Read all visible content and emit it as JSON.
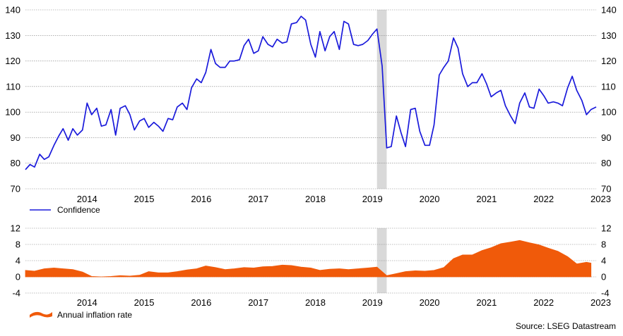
{
  "source": "Source: LSEG Datastream",
  "colors": {
    "confidence": "#1a1adb",
    "inflation": "#f05a0a",
    "highlight": "#d9d9d9",
    "grid": "#808080"
  },
  "chart_data": [
    {
      "type": "line",
      "legend": "Confidence",
      "legend_position": "bottom-left",
      "grid": true,
      "ylim": [
        70,
        140
      ],
      "yticks": [
        70,
        80,
        90,
        100,
        110,
        120,
        130,
        140
      ],
      "xticks": [
        "2014",
        "2015",
        "2016",
        "2017",
        "2018",
        "2019",
        "2020",
        "2021",
        "2022",
        "2023"
      ],
      "xlim": [
        2013.42,
        2023.42
      ],
      "highlight_band": [
        2019.58,
        2019.75
      ],
      "series": [
        {
          "name": "Confidence",
          "x": [
            2013.42,
            2013.5,
            2013.58,
            2013.67,
            2013.75,
            2013.83,
            2013.92,
            2014.0,
            2014.08,
            2014.17,
            2014.25,
            2014.33,
            2014.42,
            2014.5,
            2014.58,
            2014.67,
            2014.75,
            2014.83,
            2014.92,
            2015.0,
            2015.08,
            2015.17,
            2015.25,
            2015.33,
            2015.42,
            2015.5,
            2015.58,
            2015.67,
            2015.75,
            2015.83,
            2015.92,
            2016.0,
            2016.08,
            2016.17,
            2016.25,
            2016.33,
            2016.42,
            2016.5,
            2016.58,
            2016.67,
            2016.75,
            2016.83,
            2016.92,
            2017.0,
            2017.08,
            2017.17,
            2017.25,
            2017.33,
            2017.42,
            2017.5,
            2017.58,
            2017.67,
            2017.75,
            2017.83,
            2017.92,
            2018.0,
            2018.08,
            2018.17,
            2018.25,
            2018.33,
            2018.42,
            2018.5,
            2018.58,
            2018.67,
            2018.75,
            2018.83,
            2018.92,
            2019.0,
            2019.08,
            2019.17,
            2019.25,
            2019.33,
            2019.42,
            2019.5,
            2019.58,
            2019.67,
            2019.75,
            2019.83,
            2019.92,
            2020.0,
            2020.08,
            2020.17,
            2020.25,
            2020.33,
            2020.42,
            2020.5,
            2020.58,
            2020.67,
            2020.75,
            2020.83,
            2020.92,
            2021.0,
            2021.08,
            2021.17,
            2021.25,
            2021.33,
            2021.42,
            2021.5,
            2021.58,
            2021.67,
            2021.75,
            2021.83,
            2021.92,
            2022.0,
            2022.08,
            2022.17,
            2022.25,
            2022.33,
            2022.42,
            2022.5,
            2022.58,
            2022.67,
            2022.75,
            2022.83,
            2022.92,
            2023.0,
            2023.08,
            2023.17,
            2023.25,
            2023.33,
            2023.42
          ],
          "values": [
            77.5,
            79.5,
            78.5,
            83.5,
            81.5,
            82.5,
            87.0,
            90.5,
            93.5,
            89.0,
            93.5,
            91.0,
            93.0,
            103.5,
            99.0,
            101.5,
            94.5,
            95.0,
            101.0,
            91.0,
            101.5,
            102.5,
            99.0,
            93.0,
            96.5,
            97.5,
            94.0,
            96.0,
            94.5,
            92.5,
            97.5,
            97.0,
            102.0,
            103.5,
            101.0,
            109.5,
            113.0,
            111.5,
            115.5,
            124.5,
            119.0,
            117.5,
            117.5,
            120.0,
            120.0,
            120.5,
            126.0,
            128.5,
            123.0,
            124.0,
            129.5,
            126.5,
            125.5,
            128.5,
            127.0,
            127.5,
            134.5,
            135.0,
            137.5,
            136.0,
            126.5,
            121.5,
            131.5,
            124.0,
            129.5,
            131.5,
            124.5,
            135.5,
            134.5,
            126.5,
            126.0,
            126.5,
            128.0,
            130.5,
            132.5,
            118.0,
            86.0,
            86.5,
            98.5,
            92.0,
            86.5,
            101.0,
            101.5,
            92.5,
            87.0,
            87.0,
            95.0,
            114.5,
            117.5,
            120.0,
            129.0,
            125.0,
            115.0,
            110.0,
            111.5,
            111.5,
            115.0,
            111.0,
            106.0,
            107.5,
            108.5,
            102.5,
            98.5,
            95.5,
            103.5,
            107.5,
            102.0,
            101.5,
            109.0,
            106.5,
            103.5,
            104.0,
            103.5,
            102.5,
            109.5,
            114.0,
            108.5,
            104.5,
            99.0,
            101.0,
            102.0
          ]
        }
      ]
    },
    {
      "type": "area",
      "legend": "Annual inflation rate",
      "legend_position": "bottom-left",
      "grid": true,
      "ylim": [
        -4,
        12
      ],
      "yticks": [
        -4,
        0,
        4,
        8,
        12
      ],
      "xticks": [
        "2014",
        "2015",
        "2016",
        "2017",
        "2018",
        "2019",
        "2020",
        "2021",
        "2022",
        "2023"
      ],
      "xlim": [
        2013.42,
        2023.42
      ],
      "highlight_band": [
        2019.58,
        2019.75
      ],
      "series": [
        {
          "name": "Annual inflation rate",
          "x": [
            2013.42,
            2013.58,
            2013.75,
            2013.92,
            2014.08,
            2014.25,
            2014.42,
            2014.58,
            2014.75,
            2014.92,
            2015.08,
            2015.25,
            2015.42,
            2015.58,
            2015.75,
            2015.92,
            2016.08,
            2016.25,
            2016.42,
            2016.58,
            2016.75,
            2016.92,
            2017.08,
            2017.25,
            2017.42,
            2017.58,
            2017.75,
            2017.92,
            2018.08,
            2018.25,
            2018.42,
            2018.58,
            2018.75,
            2018.92,
            2019.08,
            2019.25,
            2019.42,
            2019.58,
            2019.75,
            2019.92,
            2020.08,
            2020.25,
            2020.42,
            2020.58,
            2020.75,
            2020.92,
            2021.08,
            2021.25,
            2021.42,
            2021.58,
            2021.75,
            2021.92,
            2022.08,
            2022.25,
            2022.42,
            2022.58,
            2022.75,
            2022.92,
            2023.08,
            2023.25,
            2023.33
          ],
          "values": [
            1.6,
            1.4,
            2.0,
            2.2,
            2.0,
            1.8,
            1.2,
            0.1,
            0.0,
            0.1,
            0.3,
            0.2,
            0.4,
            1.3,
            1.0,
            1.0,
            1.3,
            1.7,
            2.0,
            2.7,
            2.3,
            1.8,
            2.0,
            2.3,
            2.2,
            2.5,
            2.6,
            2.9,
            2.8,
            2.4,
            2.2,
            1.6,
            1.9,
            2.0,
            1.8,
            2.0,
            2.2,
            2.4,
            0.3,
            0.8,
            1.3,
            1.5,
            1.4,
            1.6,
            2.3,
            4.5,
            5.4,
            5.4,
            6.5,
            7.2,
            8.2,
            8.6,
            9.0,
            8.4,
            7.9,
            7.1,
            6.3,
            5.0,
            3.2,
            3.6,
            3.4
          ]
        }
      ]
    }
  ]
}
